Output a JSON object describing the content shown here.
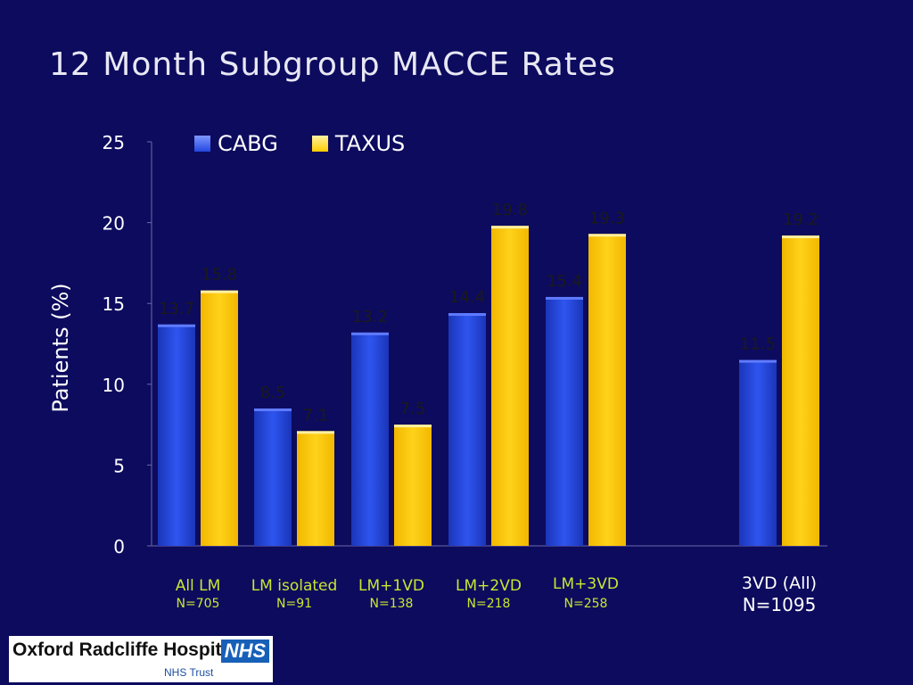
{
  "slide": {
    "title": "12 Month Subgroup MACCE Rates"
  },
  "logo": {
    "org": "Oxford Radcliffe Hospitals",
    "nhs": "NHS",
    "trust": "NHS Trust"
  },
  "colors": {
    "background": "#0d0b5e",
    "cabg": "#2447e0",
    "taxus": "#ffcc00",
    "category_label": "#c8e632",
    "tick": "#ffffff",
    "value_label": "#1a1a1a"
  },
  "chart_data": {
    "type": "bar",
    "ylabel": "Patients (%)",
    "ylim": [
      0,
      25
    ],
    "yticks": [
      0,
      5,
      10,
      15,
      20,
      25
    ],
    "categories": [
      {
        "name": "All LM",
        "n": "N=705"
      },
      {
        "name": "LM isolated",
        "n": "N=91"
      },
      {
        "name": "LM+1VD",
        "n": "N=138"
      },
      {
        "name": "LM+2VD",
        "n": "N=218"
      },
      {
        "name": "LM+3VD",
        "n": "N=258"
      },
      {
        "name": "3VD (All)",
        "n": "N=1095"
      }
    ],
    "series": [
      {
        "name": "CABG",
        "values": [
          13.7,
          8.5,
          13.2,
          14.4,
          15.4,
          11.5
        ]
      },
      {
        "name": "TAXUS",
        "values": [
          15.8,
          7.1,
          7.5,
          19.8,
          19.3,
          19.2
        ]
      }
    ],
    "legend": "top"
  }
}
